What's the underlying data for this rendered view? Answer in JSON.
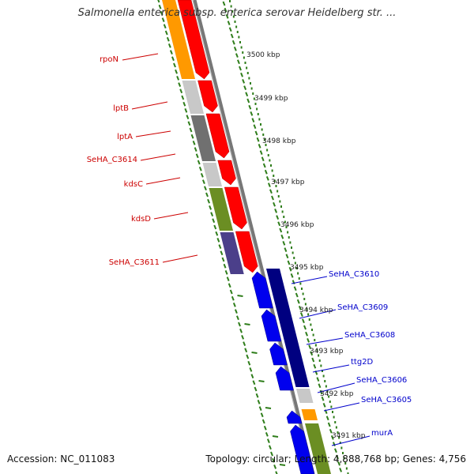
{
  "title": "Salmonella enterica subsp. enterica serovar Heidelberg str. ...",
  "accession_label": "Accession:",
  "accession": "NC_011083",
  "topology_label": "Topology:",
  "topology": "circular",
  "length_label": "Length:",
  "length": "4,888,768 bp",
  "genes_label": "Genes:",
  "genes": "4,756",
  "colors": {
    "forward_label": "#cc0000",
    "reverse_label": "#0000cc",
    "tick": "#2e7d1a",
    "backbone": "#888888",
    "cds_forward": "#ff0000",
    "cds_reverse": "#0000ee",
    "cds_reverse_dark": "#000080"
  },
  "ruler": [
    {
      "label": "3500 kbp"
    },
    {
      "label": "3499 kbp"
    },
    {
      "label": "3498 kbp"
    },
    {
      "label": "3497 kbp"
    },
    {
      "label": "3496 kbp"
    },
    {
      "label": "3495 kbp"
    },
    {
      "label": "3494 kbp"
    },
    {
      "label": "3493 kbp"
    },
    {
      "label": "3492 kbp"
    },
    {
      "label": "3491 kbp"
    }
  ],
  "forward_genes": [
    {
      "name": "rpoN"
    },
    {
      "name": "lptB"
    },
    {
      "name": "lptA"
    },
    {
      "name": "SeHA_C3614"
    },
    {
      "name": "kdsC"
    },
    {
      "name": "kdsD"
    },
    {
      "name": "SeHA_C3611"
    }
  ],
  "reverse_genes": [
    {
      "name": "SeHA_C3610"
    },
    {
      "name": "SeHA_C3609"
    },
    {
      "name": "SeHA_C3608"
    },
    {
      "name": "ttg2D"
    },
    {
      "name": "SeHA_C3606"
    },
    {
      "name": "SeHA_C3605"
    },
    {
      "name": "murA"
    }
  ]
}
